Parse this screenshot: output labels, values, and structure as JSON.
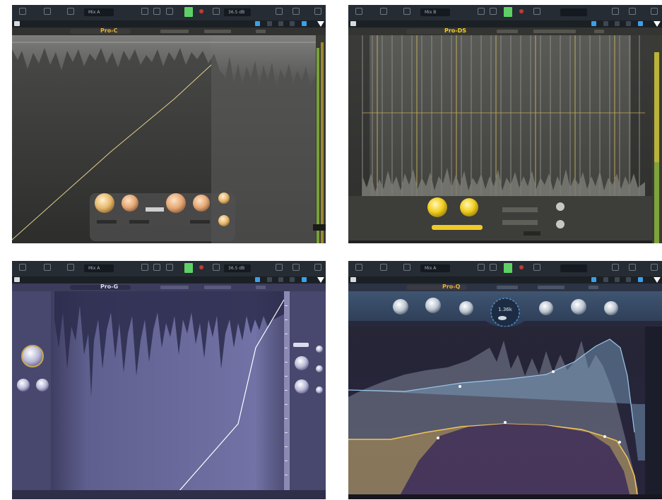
{
  "panels": [
    {
      "id": "top-left",
      "preset_field": "Mix A",
      "zoom_field": "36.5 dB",
      "plugin_name": "Pro-C",
      "theme": {
        "bg": "#3a3a38",
        "accent": "#e2b64b"
      }
    },
    {
      "id": "top-right",
      "preset_field": "Mix B",
      "zoom_field": "",
      "plugin_name": "Pro-DS",
      "theme": {
        "bg": "#3f3f3c",
        "accent": "#f3cf25"
      }
    },
    {
      "id": "bottom-left",
      "preset_field": "Mix A",
      "zoom_field": "36.5 dB",
      "plugin_name": "Pro-G",
      "theme": {
        "bg": "#4a4a72",
        "accent": "#c9c9e6"
      }
    },
    {
      "id": "bottom-right",
      "preset_field": "Mix A",
      "zoom_field": "",
      "plugin_name": "Pro-Q",
      "theme": {
        "bg": "#2a2946",
        "accent": "#e5ae3c"
      },
      "knob_readout": "1.36k"
    }
  ],
  "icons": [
    "grid-icon",
    "mixer-icon",
    "list-icon",
    "record-icon",
    "export-icon",
    "settings-icon"
  ]
}
